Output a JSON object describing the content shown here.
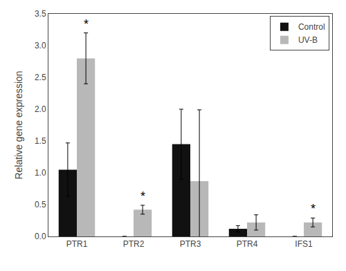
{
  "chart_data": {
    "type": "bar",
    "categories": [
      "PTR1",
      "PTR2",
      "PTR3",
      "PTR4",
      "IFS1"
    ],
    "series": [
      {
        "name": "Control",
        "color": "#111111",
        "values": [
          1.05,
          0.0,
          1.45,
          0.12,
          0.0
        ],
        "errors": [
          0.42,
          0.0,
          0.55,
          0.05,
          0.0
        ]
      },
      {
        "name": "UV-B",
        "color": "#b8b8b8",
        "values": [
          2.8,
          0.42,
          0.87,
          0.22,
          0.22
        ],
        "errors": [
          0.4,
          0.07,
          1.12,
          0.12,
          0.07
        ]
      }
    ],
    "annotations": [
      {
        "category": "PTR1",
        "series": "UV-B",
        "text": "*"
      },
      {
        "category": "PTR2",
        "series": "UV-B",
        "text": "*"
      },
      {
        "category": "IFS1",
        "series": "UV-B",
        "text": "*"
      }
    ],
    "ylabel": "Relative gene expression",
    "ylim": [
      0,
      3.5
    ],
    "yticks": [
      {
        "value": 0,
        "label": "0.0"
      },
      0.5,
      {
        "value": 1,
        "label": "1.0"
      },
      1.5,
      {
        "value": 2,
        "label": "2.0"
      },
      2.5,
      {
        "value": 3,
        "label": "3.0"
      },
      3.5
    ],
    "grid": false,
    "legend": "upper right"
  }
}
